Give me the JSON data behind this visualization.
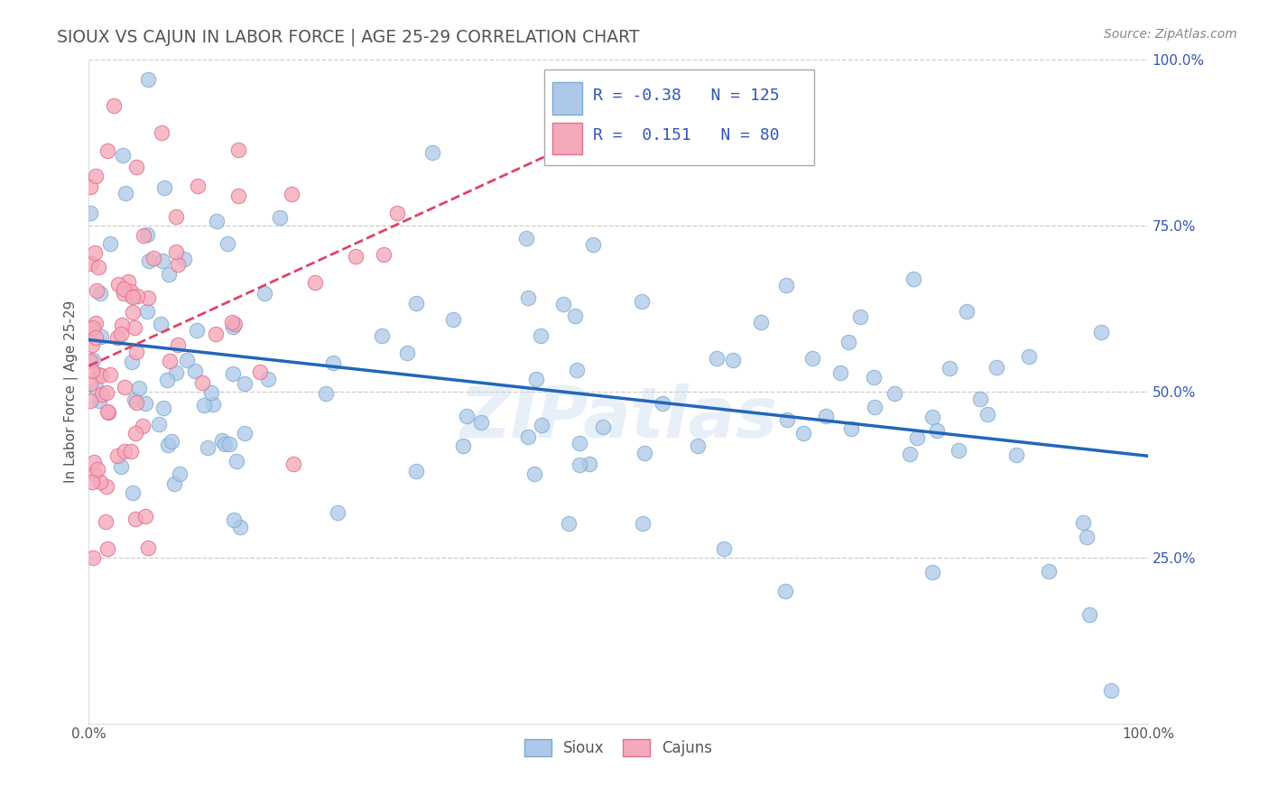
{
  "title": "SIOUX VS CAJUN IN LABOR FORCE | AGE 25-29 CORRELATION CHART",
  "source": "Source: ZipAtlas.com",
  "ylabel": "In Labor Force | Age 25-29",
  "xlim": [
    0.0,
    1.0
  ],
  "ylim": [
    0.0,
    1.0
  ],
  "sioux_color": "#adc8e8",
  "cajun_color": "#f5aabb",
  "sioux_edge": "#7aaad0",
  "cajun_edge": "#e07090",
  "trend_sioux_color": "#2266bb",
  "trend_cajun_color": "#dd4466",
  "sioux_R": -0.38,
  "sioux_N": 125,
  "cajun_R": 0.151,
  "cajun_N": 80,
  "grid_color": "#cccccc",
  "watermark": "ZIPatlas",
  "background_color": "#ffffff",
  "title_color": "#555555",
  "ytick_color": "#3355bb",
  "ytick_positions": [
    0.25,
    0.5,
    0.75,
    1.0
  ],
  "ytick_labels": [
    "25.0%",
    "50.0%",
    "75.0%",
    "100.0%"
  ]
}
